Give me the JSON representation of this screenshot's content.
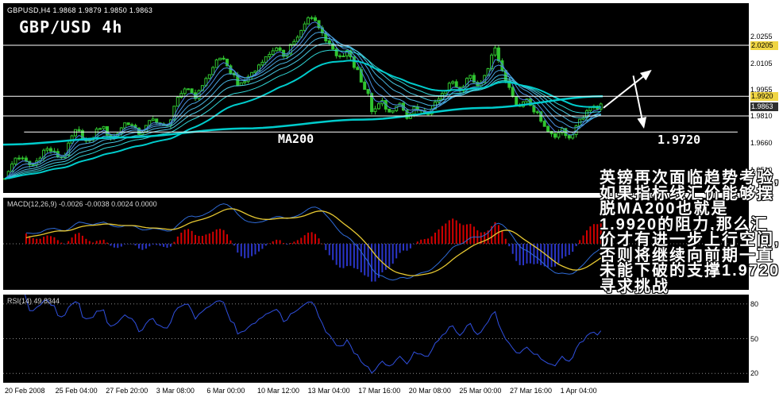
{
  "colors": {
    "background": "#ffffff",
    "panel_bg": "#000000",
    "candle": "#30c430",
    "ma_fan": [
      "#4a7de0",
      "#4a90e0",
      "#49a3e0",
      "#49b6e0",
      "#48c9e0",
      "#30d5d5",
      "#00cccc"
    ],
    "ma200": "#00cccc",
    "line_objects": "#ffffff",
    "macd_hist_up": "#d40000",
    "macd_hist_down": "#2a35c8",
    "macd_line": "#2f6bd8",
    "macd_signal": "#e6c832",
    "rsi_line": "#3050e0",
    "grid_dotted": "#8a8a8a",
    "tag_yellow": "#f0d543",
    "tag_current_bg": "#2e2e2e"
  },
  "header": {
    "symbol_info": "GBPUSD,H4 1.9868 1.9879 1.9850 1.9863",
    "title": "GBP/USD 4h"
  },
  "annotations": {
    "ma200_label": "MA200",
    "support_label": "1.9720",
    "note_cn": "英镑再次面临趋势考验,如果指标线汇价能够摆脱MA200也就是1.9920的阻力,那么汇价才有进一步上行空间,否则将继续向前期一直未能下破的支撑1.9720寻求挑战"
  },
  "chart_data": [
    {
      "type": "candlestick",
      "symbol": "GBPUSD",
      "timeframe": "H4",
      "ohlc_current": {
        "open": 1.9868,
        "high": 1.9879,
        "low": 1.985,
        "close": 1.9863
      },
      "ylim": [
        1.938,
        2.044
      ],
      "candles": 170,
      "data_window_fraction": 0.804,
      "volatility": 0.003,
      "wick": 0.0018,
      "close_waypoints": [
        [
          0.0,
          1.947
        ],
        [
          0.02,
          1.958
        ],
        [
          0.045,
          1.9535
        ],
        [
          0.07,
          1.9625
        ],
        [
          0.095,
          1.958
        ],
        [
          0.12,
          1.9725
        ],
        [
          0.14,
          1.966
        ],
        [
          0.16,
          1.975
        ],
        [
          0.18,
          1.969
        ],
        [
          0.205,
          1.9775
        ],
        [
          0.225,
          1.9715
        ],
        [
          0.25,
          1.979
        ],
        [
          0.27,
          1.9745
        ],
        [
          0.29,
          1.99
        ],
        [
          0.305,
          1.997
        ],
        [
          0.32,
          1.992
        ],
        [
          0.34,
          2.003
        ],
        [
          0.36,
          2.014
        ],
        [
          0.378,
          2.006
        ],
        [
          0.395,
          1.998
        ],
        [
          0.415,
          2.005
        ],
        [
          0.435,
          2.013
        ],
        [
          0.452,
          2.0185
        ],
        [
          0.468,
          2.015
        ],
        [
          0.485,
          2.023
        ],
        [
          0.515,
          2.037
        ],
        [
          0.53,
          2.029
        ],
        [
          0.545,
          2.02
        ],
        [
          0.56,
          2.013
        ],
        [
          0.575,
          2.0165
        ],
        [
          0.59,
          2.007
        ],
        [
          0.605,
          1.996
        ],
        [
          0.618,
          1.983
        ],
        [
          0.632,
          1.989
        ],
        [
          0.648,
          1.982
        ],
        [
          0.662,
          1.988
        ],
        [
          0.676,
          1.979
        ],
        [
          0.69,
          1.986
        ],
        [
          0.705,
          1.981
        ],
        [
          0.72,
          1.987
        ],
        [
          0.735,
          1.993
        ],
        [
          0.75,
          2.0
        ],
        [
          0.763,
          1.996
        ],
        [
          0.778,
          2.003
        ],
        [
          0.793,
          1.9985
        ],
        [
          0.808,
          2.006
        ],
        [
          0.822,
          2.0195
        ],
        [
          0.833,
          2.008
        ],
        [
          0.848,
          1.995
        ],
        [
          0.862,
          1.986
        ],
        [
          0.876,
          1.991
        ],
        [
          0.89,
          1.983
        ],
        [
          0.905,
          1.976
        ],
        [
          0.92,
          1.969
        ],
        [
          0.934,
          1.974
        ],
        [
          0.948,
          1.9685
        ],
        [
          0.962,
          1.978
        ],
        [
          0.98,
          1.9845
        ],
        [
          1.0,
          1.9863
        ]
      ],
      "ma200_waypoints": [
        [
          0,
          1.965
        ],
        [
          0.2,
          1.969
        ],
        [
          0.4,
          1.974
        ],
        [
          0.6,
          1.979
        ],
        [
          0.8,
          1.9855
        ],
        [
          1.0,
          1.992
        ]
      ],
      "ema_periods": [
        4,
        7,
        11,
        16,
        22,
        30,
        45
      ],
      "horizontal_lines": [
        {
          "price": 2.0205,
          "x1": 0,
          "x2": 1
        },
        {
          "price": 1.992,
          "x1": 0,
          "x2": 1
        },
        {
          "price": 1.981,
          "x1": 0,
          "x2": 1
        },
        {
          "price": 1.972,
          "x1": 0.028,
          "x2": 0.985
        }
      ],
      "price_axis_labels": [
        {
          "label": "2.0255",
          "value": 2.0255,
          "style": "plain"
        },
        {
          "label": "2.0205",
          "value": 2.0205,
          "style": "yellow"
        },
        {
          "label": "2.0105",
          "value": 2.0105,
          "style": "plain"
        },
        {
          "label": "1.9955",
          "value": 1.9955,
          "style": "plain"
        },
        {
          "label": "1.9920",
          "value": 1.992,
          "style": "yellow"
        },
        {
          "label": "1.9863",
          "value": 1.9863,
          "style": "current"
        },
        {
          "label": "1.9810",
          "value": 1.981,
          "style": "plain"
        },
        {
          "label": "1.9660",
          "value": 1.966,
          "style": "plain"
        },
        {
          "label": "1.9510",
          "value": 1.951,
          "style": "plain"
        }
      ],
      "arrows": [
        {
          "x1": 0.805,
          "p1": 1.9855,
          "x2": 0.868,
          "p2": 2.0062
        },
        {
          "x1": 0.845,
          "p1": 2.0035,
          "x2": 0.859,
          "p2": 1.9748
        }
      ],
      "time_axis_labels": [
        "20 Feb 2008",
        "25 Feb 04:00",
        "27 Feb 20:00",
        "3 Mar 08:00",
        "6 Mar 00:00",
        "10 Mar 12:00",
        "13 Mar 04:00",
        "17 Mar 16:00",
        "20 Mar 08:00",
        "25 Mar 00:00",
        "27 Mar 16:00",
        "1 Apr 04:00"
      ]
    },
    {
      "type": "macd",
      "label": "MACD(12,26,9) -0.0026 -0.0038 0.0024 0.0000",
      "params": {
        "fast": 12,
        "slow": 26,
        "signal": 9
      },
      "current": {
        "macd": -0.0026,
        "signal": -0.0038,
        "hist": 0.0024,
        "zero": 0.0
      }
    },
    {
      "type": "rsi",
      "label": "RSI(14) 49.8344",
      "period": 14,
      "current": 49.8344,
      "levels": [
        80,
        50,
        20
      ],
      "ylim": [
        12,
        88
      ]
    }
  ]
}
